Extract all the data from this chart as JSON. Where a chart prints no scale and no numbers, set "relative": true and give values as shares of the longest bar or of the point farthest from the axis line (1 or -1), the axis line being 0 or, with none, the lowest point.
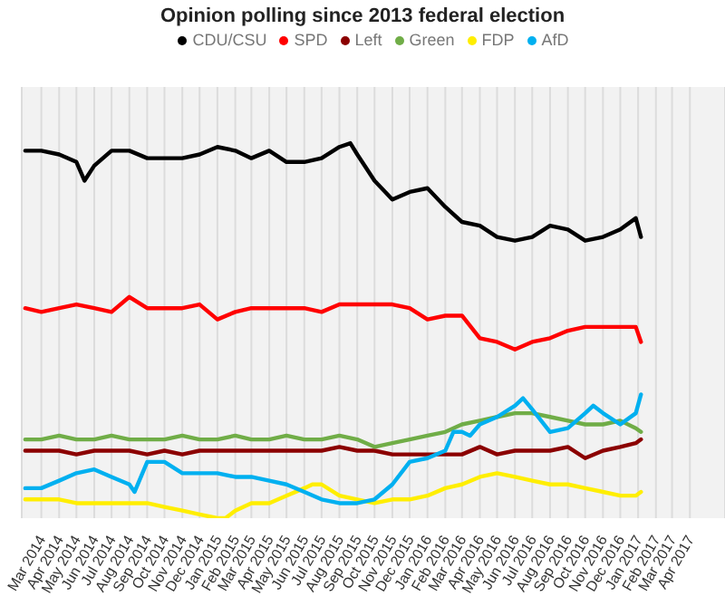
{
  "chart_data": {
    "type": "line",
    "title": "Opinion polling since 2013 federal election",
    "relative": true,
    "legend": "top",
    "grid": "x",
    "marker": "none",
    "line_style": "solid",
    "xlim": [
      "2014-01-26",
      "2017-06-01"
    ],
    "xticks": [
      {
        "value": "2014-03",
        "label": "Mar 2014"
      },
      {
        "value": "2014-04",
        "label": "Apr 2014"
      },
      {
        "value": "2014-05",
        "label": "May 2014"
      },
      {
        "value": "2014-06",
        "label": "Jun 2014"
      },
      {
        "value": "2014-07",
        "label": "Jul 2014"
      },
      {
        "value": "2014-08",
        "label": "Aug 2014"
      },
      {
        "value": "2014-09",
        "label": "Sep 2014"
      },
      {
        "value": "2014-10",
        "label": "Oct 2014"
      },
      {
        "value": "2014-11",
        "label": "Nov 2014"
      },
      {
        "value": "2014-12",
        "label": "Dec 2014"
      },
      {
        "value": "2015-01",
        "label": "Jan 2015"
      },
      {
        "value": "2015-02",
        "label": "Feb 2015"
      },
      {
        "value": "2015-03",
        "label": "Mar 2015"
      },
      {
        "value": "2015-04",
        "label": "Apr 2015"
      },
      {
        "value": "2015-05",
        "label": "May 2015"
      },
      {
        "value": "2015-06",
        "label": "Jun 2015"
      },
      {
        "value": "2015-07",
        "label": "Jul 2015"
      },
      {
        "value": "2015-08",
        "label": "Aug 2015"
      },
      {
        "value": "2015-09",
        "label": "Sep 2015"
      },
      {
        "value": "2015-10",
        "label": "Oct 2015"
      },
      {
        "value": "2015-11",
        "label": "Nov 2015"
      },
      {
        "value": "2015-12",
        "label": "Dec 2015"
      },
      {
        "value": "2016-01",
        "label": "Jan 2016"
      },
      {
        "value": "2016-02",
        "label": "Feb 2016"
      },
      {
        "value": "2016-03",
        "label": "Mar 2016"
      },
      {
        "value": "2016-04",
        "label": "Apr 2016"
      },
      {
        "value": "2016-05",
        "label": "May 2016"
      },
      {
        "value": "2016-06",
        "label": "Jun 2016"
      },
      {
        "value": "2016-07",
        "label": "Jul 2016"
      },
      {
        "value": "2016-08",
        "label": "Aug 2016"
      },
      {
        "value": "2016-09",
        "label": "Sep 2016"
      },
      {
        "value": "2016-10",
        "label": "Oct 2016"
      },
      {
        "value": "2016-11",
        "label": "Nov 2016"
      },
      {
        "value": "2016-12",
        "label": "Dec 2016"
      },
      {
        "value": "2017-01",
        "label": "Jan 2017"
      },
      {
        "value": "2017-02",
        "label": "Feb 2017"
      },
      {
        "value": "2017-03",
        "label": "Mar 2017"
      },
      {
        "value": "2017-04",
        "label": "Apr 2017"
      }
    ],
    "series": [
      {
        "name": "CDU/CSU",
        "color": "#000000",
        "x": [
          "2014-02",
          "2014-03",
          "2014-04",
          "2014-05",
          "2014-05-15",
          "2014-06",
          "2014-07",
          "2014-08",
          "2014-09",
          "2014-10",
          "2014-11",
          "2014-12",
          "2015-01",
          "2015-02",
          "2015-03",
          "2015-04",
          "2015-05",
          "2015-06",
          "2015-07",
          "2015-08",
          "2015-08-20",
          "2015-09",
          "2015-10",
          "2015-11",
          "2015-12",
          "2016-01",
          "2016-02",
          "2016-03",
          "2016-04",
          "2016-05",
          "2016-06",
          "2016-07",
          "2016-08",
          "2016-09",
          "2016-10",
          "2016-11",
          "2016-12",
          "2016-12-28",
          "2017-01-06"
        ],
        "values": [
          0.98,
          0.98,
          0.97,
          0.95,
          0.9,
          0.94,
          0.98,
          0.98,
          0.96,
          0.96,
          0.96,
          0.97,
          0.99,
          0.98,
          0.96,
          0.98,
          0.95,
          0.95,
          0.96,
          0.99,
          1,
          0.97,
          0.9,
          0.85,
          0.87,
          0.88,
          0.83,
          0.79,
          0.78,
          0.75,
          0.74,
          0.75,
          0.78,
          0.77,
          0.74,
          0.75,
          0.77,
          0.8,
          0.75
        ]
      },
      {
        "name": "SPD",
        "color": "#ff0000",
        "x": [
          "2014-02",
          "2014-03",
          "2014-04",
          "2014-05",
          "2014-06",
          "2014-07",
          "2014-08",
          "2014-09",
          "2014-10",
          "2014-11",
          "2014-12",
          "2015-01",
          "2015-02",
          "2015-03",
          "2015-04",
          "2015-05",
          "2015-06",
          "2015-07",
          "2015-08",
          "2015-09",
          "2015-10",
          "2015-11",
          "2015-12",
          "2016-01",
          "2016-02",
          "2016-03",
          "2016-04",
          "2016-05",
          "2016-06",
          "2016-07",
          "2016-08",
          "2016-09",
          "2016-10",
          "2016-11",
          "2016-12",
          "2016-12-28",
          "2017-01-06"
        ],
        "values": [
          0.56,
          0.55,
          0.56,
          0.57,
          0.56,
          0.55,
          0.59,
          0.56,
          0.56,
          0.56,
          0.57,
          0.53,
          0.55,
          0.56,
          0.56,
          0.56,
          0.56,
          0.55,
          0.57,
          0.57,
          0.57,
          0.57,
          0.56,
          0.53,
          0.54,
          0.54,
          0.48,
          0.47,
          0.45,
          0.47,
          0.48,
          0.5,
          0.51,
          0.51,
          0.51,
          0.51,
          0.47
        ]
      },
      {
        "name": "Left",
        "color": "#8b0000",
        "x": [
          "2014-02",
          "2014-03",
          "2014-04",
          "2014-05",
          "2014-06",
          "2014-07",
          "2014-08",
          "2014-09",
          "2014-10",
          "2014-11",
          "2014-12",
          "2015-01",
          "2015-02",
          "2015-03",
          "2015-04",
          "2015-05",
          "2015-06",
          "2015-07",
          "2015-08",
          "2015-09",
          "2015-10",
          "2015-11",
          "2015-12",
          "2016-01",
          "2016-02",
          "2016-03",
          "2016-04",
          "2016-05",
          "2016-06",
          "2016-07",
          "2016-08",
          "2016-09",
          "2016-10",
          "2016-11",
          "2016-12",
          "2016-12-28",
          "2017-01-06"
        ],
        "values": [
          0.18,
          0.18,
          0.18,
          0.17,
          0.18,
          0.18,
          0.18,
          0.17,
          0.18,
          0.17,
          0.18,
          0.18,
          0.18,
          0.18,
          0.18,
          0.18,
          0.18,
          0.18,
          0.19,
          0.18,
          0.18,
          0.17,
          0.17,
          0.17,
          0.17,
          0.17,
          0.19,
          0.17,
          0.18,
          0.18,
          0.18,
          0.19,
          0.16,
          0.18,
          0.19,
          0.2,
          0.21
        ]
      },
      {
        "name": "Green",
        "color": "#70ad47",
        "x": [
          "2014-02",
          "2014-03",
          "2014-04",
          "2014-05",
          "2014-06",
          "2014-07",
          "2014-08",
          "2014-09",
          "2014-10",
          "2014-11",
          "2014-12",
          "2015-01",
          "2015-02",
          "2015-03",
          "2015-04",
          "2015-05",
          "2015-06",
          "2015-07",
          "2015-08",
          "2015-09",
          "2015-10",
          "2015-11",
          "2015-12",
          "2016-01",
          "2016-02",
          "2016-03",
          "2016-04",
          "2016-05",
          "2016-06",
          "2016-07",
          "2016-08",
          "2016-09",
          "2016-10",
          "2016-11",
          "2016-12",
          "2016-12-28",
          "2017-01-06"
        ],
        "values": [
          0.21,
          0.21,
          0.22,
          0.21,
          0.21,
          0.22,
          0.21,
          0.21,
          0.21,
          0.22,
          0.21,
          0.21,
          0.22,
          0.21,
          0.21,
          0.22,
          0.21,
          0.21,
          0.22,
          0.21,
          0.19,
          0.2,
          0.21,
          0.22,
          0.23,
          0.25,
          0.26,
          0.27,
          0.28,
          0.28,
          0.27,
          0.26,
          0.25,
          0.25,
          0.26,
          0.24,
          0.23
        ]
      },
      {
        "name": "FDP",
        "color": "#ffee00",
        "x": [
          "2014-02",
          "2014-03",
          "2014-04",
          "2014-05",
          "2014-06",
          "2014-07",
          "2014-08",
          "2014-09",
          "2014-10",
          "2014-11",
          "2014-12",
          "2015-01",
          "2015-01-15",
          "2015-02",
          "2015-03",
          "2015-04",
          "2015-05",
          "2015-06",
          "2015-06-15",
          "2015-07",
          "2015-08",
          "2015-09",
          "2015-10",
          "2015-11",
          "2015-12",
          "2016-01",
          "2016-02",
          "2016-03",
          "2016-04",
          "2016-05",
          "2016-06",
          "2016-07",
          "2016-08",
          "2016-09",
          "2016-10",
          "2016-11",
          "2016-12",
          "2016-12-28",
          "2017-01-06"
        ],
        "values": [
          0.05,
          0.05,
          0.05,
          0.04,
          0.04,
          0.04,
          0.04,
          0.04,
          0.03,
          0.02,
          0.01,
          0.0,
          0,
          0.02,
          0.04,
          0.04,
          0.06,
          0.08,
          0.09,
          0.09,
          0.06,
          0.05,
          0.04,
          0.05,
          0.05,
          0.06,
          0.08,
          0.09,
          0.11,
          0.12,
          0.11,
          0.1,
          0.09,
          0.09,
          0.08,
          0.07,
          0.06,
          0.06,
          0.07
        ]
      },
      {
        "name": "AfD",
        "color": "#00b0f0",
        "x": [
          "2014-02",
          "2014-03",
          "2014-04",
          "2014-05",
          "2014-06",
          "2014-07",
          "2014-08",
          "2014-08-10",
          "2014-09",
          "2014-10",
          "2014-11",
          "2014-12",
          "2015-01",
          "2015-02",
          "2015-03",
          "2015-04",
          "2015-05",
          "2015-06",
          "2015-07",
          "2015-08",
          "2015-09",
          "2015-10",
          "2015-11",
          "2015-12",
          "2016-01",
          "2016-02",
          "2016-02-15",
          "2016-03",
          "2016-03-15",
          "2016-04",
          "2016-05",
          "2016-06",
          "2016-06-15",
          "2016-07",
          "2016-08",
          "2016-09",
          "2016-10",
          "2016-10-15",
          "2016-11",
          "2016-12",
          "2016-12-28",
          "2017-01-06"
        ],
        "values": [
          0.08,
          0.08,
          0.1,
          0.12,
          0.13,
          0.11,
          0.09,
          0.07,
          0.15,
          0.15,
          0.12,
          0.12,
          0.12,
          0.11,
          0.11,
          0.1,
          0.09,
          0.07,
          0.05,
          0.04,
          0.04,
          0.05,
          0.09,
          0.15,
          0.16,
          0.18,
          0.23,
          0.23,
          0.22,
          0.25,
          0.27,
          0.3,
          0.32,
          0.29,
          0.23,
          0.24,
          0.28,
          0.3,
          0.28,
          0.25,
          0.28,
          0.33
        ]
      }
    ]
  }
}
